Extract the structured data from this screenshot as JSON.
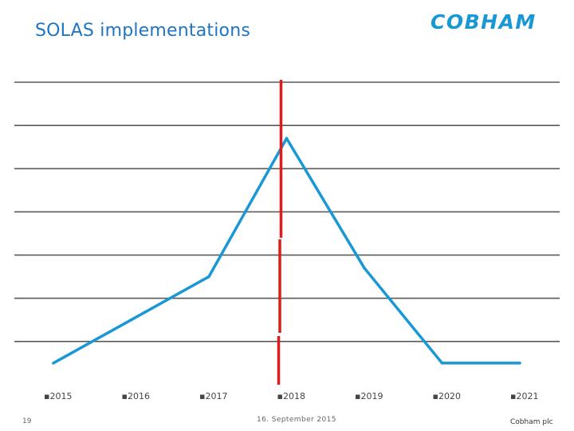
{
  "header": {
    "title": "SOLAS implementations",
    "logo_text": "COBHAM"
  },
  "footer": {
    "page_number": "19",
    "date": "16. September 2015",
    "company": "Cobham plc"
  },
  "colors": {
    "title": "#1f74c4",
    "logo": "#1a98d5",
    "series": "#1a98d5",
    "marker": "#e01b1b",
    "grid": "#5a5a5a"
  },
  "chart_data": {
    "type": "line",
    "categories": [
      "2015",
      "2016",
      "2017",
      "2018",
      "2019",
      "2020",
      "2021"
    ],
    "tick_prefix": "▪",
    "series": [
      {
        "values": [
          0.5,
          1.5,
          2.5,
          5.7,
          2.7,
          0.5,
          0.5
        ]
      }
    ],
    "ylim": [
      0,
      7
    ],
    "grid": true,
    "vertical_marker": {
      "at_category": "2018"
    }
  }
}
